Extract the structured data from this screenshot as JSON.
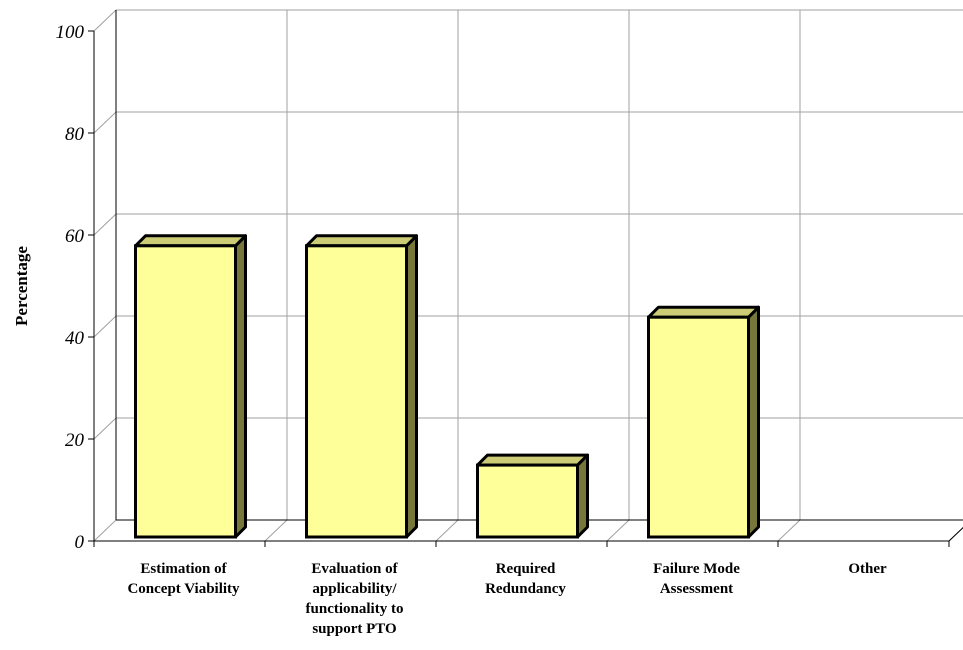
{
  "chart_data": {
    "type": "bar",
    "categories": [
      [
        "Estimation of",
        "Concept Viability"
      ],
      [
        "Evaluation of",
        "applicability/",
        "functionality to",
        "support PTO"
      ],
      [
        "Required",
        "Redundancy"
      ],
      [
        "Failure Mode",
        "Assessment"
      ],
      [
        "Other"
      ]
    ],
    "values": [
      57,
      57,
      14,
      43,
      0
    ],
    "ylabel": "Percentage",
    "xlabel": "",
    "title": "",
    "ylim": [
      0,
      100
    ],
    "yticks": [
      0,
      20,
      40,
      60,
      80,
      100
    ],
    "grid": true,
    "style": "3d",
    "colors": {
      "bar_front": "#FFFF99",
      "bar_top": "#CCCC77",
      "bar_side": "#77773B",
      "bar_outline": "#000000",
      "grid": "#A0A0A0",
      "axis": "#000000"
    }
  }
}
